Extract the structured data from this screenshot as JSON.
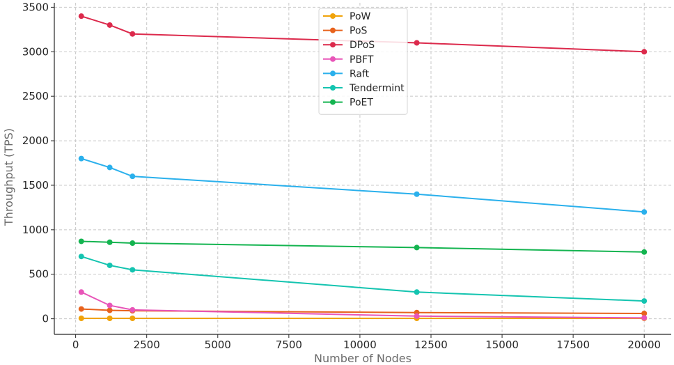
{
  "chart_data": {
    "type": "line",
    "title": "",
    "xlabel": "Number of Nodes",
    "ylabel": "Throughput (TPS)",
    "x": [
      200,
      1200,
      2000,
      12000,
      20000
    ],
    "xlim": [
      -750,
      20950
    ],
    "ylim": [
      -175,
      3550
    ],
    "xticks": [
      0,
      2500,
      5000,
      7500,
      10000,
      12500,
      15000,
      17500,
      20000
    ],
    "yticks": [
      0,
      500,
      1000,
      1500,
      2000,
      2500,
      3000,
      3500
    ],
    "grid": true,
    "legend_position": "top-center",
    "series": [
      {
        "name": "PoW",
        "color": "#f0a30a",
        "values": [
          5,
          5,
          5,
          5,
          5
        ]
      },
      {
        "name": "PoS",
        "color": "#e8621c",
        "values": [
          110,
          95,
          90,
          70,
          60
        ]
      },
      {
        "name": "DPoS",
        "color": "#dc2a4c",
        "values": [
          3400,
          3300,
          3200,
          3100,
          3000
        ]
      },
      {
        "name": "PBFT",
        "color": "#e855b8",
        "values": [
          300,
          150,
          100,
          30,
          10
        ]
      },
      {
        "name": "Raft",
        "color": "#2ab0ec",
        "values": [
          1800,
          1700,
          1600,
          1400,
          1200
        ]
      },
      {
        "name": "Tendermint",
        "color": "#14c4b0",
        "values": [
          700,
          600,
          550,
          300,
          200
        ]
      },
      {
        "name": "PoET",
        "color": "#14b450",
        "values": [
          870,
          860,
          850,
          800,
          750
        ]
      }
    ]
  }
}
